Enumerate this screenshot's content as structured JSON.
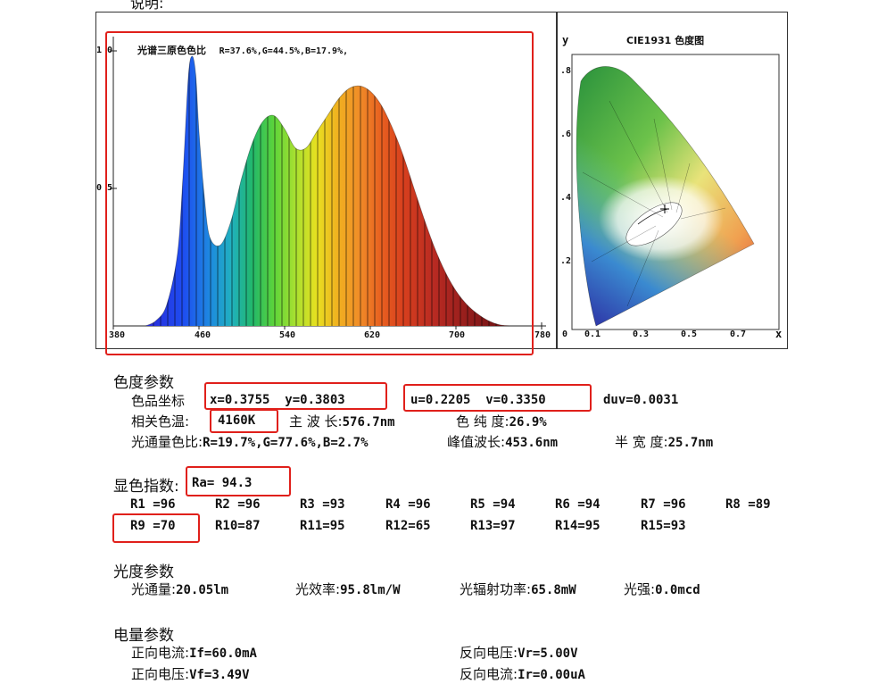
{
  "header_fragment": "说明:",
  "spectrum": {
    "title": "光谱三原色色比",
    "ratio": "R=37.6%,G=44.5%,B=17.9%,",
    "y_tick_top": "1 0",
    "y_tick_mid": "0 5",
    "x_ticks": [
      "380",
      "460",
      "540",
      "620",
      "700",
      "780"
    ]
  },
  "cie": {
    "title": "CIE1931 色度图",
    "y_axis": "y",
    "x_axis": "x",
    "y_ticks": [
      ".8",
      ".6",
      ".4",
      ".2",
      "0"
    ],
    "x_ticks": [
      "0.1",
      "0.3",
      "0.5",
      "0.7"
    ]
  },
  "chart_data": {
    "type": "area",
    "title": "光谱三原色色比",
    "x_range": [
      380,
      780
    ],
    "y_range": [
      0,
      1
    ],
    "x_ticks": [
      380,
      460,
      540,
      620,
      700,
      780
    ],
    "x": [
      410,
      420,
      430,
      440,
      445,
      450,
      453.6,
      457,
      460,
      465,
      470,
      480,
      490,
      500,
      510,
      520,
      530,
      540,
      550,
      560,
      570,
      580,
      590,
      600,
      610,
      620,
      630,
      640,
      650,
      660,
      670,
      680,
      690,
      700,
      710,
      720,
      730,
      740,
      750
    ],
    "y": [
      0.0,
      0.02,
      0.08,
      0.27,
      0.55,
      0.92,
      1.0,
      0.93,
      0.72,
      0.48,
      0.33,
      0.3,
      0.39,
      0.55,
      0.68,
      0.76,
      0.78,
      0.73,
      0.66,
      0.66,
      0.72,
      0.78,
      0.84,
      0.88,
      0.89,
      0.87,
      0.82,
      0.74,
      0.64,
      0.52,
      0.4,
      0.29,
      0.2,
      0.13,
      0.08,
      0.045,
      0.02,
      0.005,
      0.0
    ]
  },
  "sections": {
    "chroma": {
      "heading": "色度参数",
      "coord_label": "色品坐标",
      "xy": "x=0.3755  y=0.3803",
      "uv": "u=0.2205  v=0.3350",
      "duv": "duv=0.0031",
      "cct_label": "相关色温:",
      "cct": "4160K",
      "dom_label": "主 波 长:",
      "dom": "576.7nm",
      "purity_label": "色 纯 度:",
      "purity": "26.9%",
      "flux_ratio_label": "光通量色比:",
      "flux_ratio": "R=19.7%,G=77.6%,B=2.7%",
      "peak_label": "峰值波长:",
      "peak": "453.6nm",
      "fwhm_label": "半 宽 度:",
      "fwhm": "25.7nm"
    },
    "cri": {
      "heading": "显色指数:",
      "ra": "Ra= 94.3",
      "row1": [
        "R1 =96",
        "R2 =96",
        "R3 =93",
        "R4 =96",
        "R5 =94",
        "R6 =94",
        "R7 =96",
        "R8 =89"
      ],
      "row2": [
        "R9 =70",
        "R10=87",
        "R11=95",
        "R12=65",
        "R13=97",
        "R14=95",
        "R15=93"
      ]
    },
    "photometric": {
      "heading": "光度参数",
      "flux_label": "光通量:",
      "flux": "20.05lm",
      "efficacy_label": "光效率:",
      "efficacy": "95.8lm/W",
      "radiant_label": "光辐射功率:",
      "radiant": "65.8mW",
      "intensity_label": "光强:",
      "intensity": "0.0mcd"
    },
    "electrical": {
      "heading": "电量参数",
      "if_label": "正向电流:",
      "if": "If=60.0mA",
      "vr_label": "反向电压:",
      "vr": "Vr=5.00V",
      "vf_label": "正向电压:",
      "vf": "Vf=3.49V",
      "ir_label": "反向电流:",
      "ir": "Ir=0.00uA"
    }
  },
  "colors": {
    "highlight": "#e0201b"
  }
}
